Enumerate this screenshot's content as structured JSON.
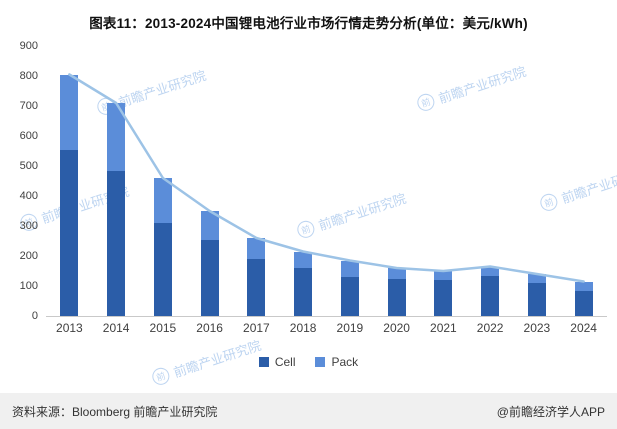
{
  "title": "图表11：2013-2024中国锂电池行业市场行情走势分析(单位：美元/kWh)",
  "chart_data": {
    "type": "bar",
    "stacked": true,
    "title": "图表11：2013-2024中国锂电池行业市场行情走势分析(单位：美元/kWh)",
    "unit": "美元/kWh",
    "categories": [
      "2013",
      "2014",
      "2015",
      "2016",
      "2017",
      "2018",
      "2019",
      "2020",
      "2021",
      "2022",
      "2023",
      "2024"
    ],
    "series": [
      {
        "name": "Cell",
        "color": "#2b5da8",
        "values": [
          555,
          485,
          310,
          255,
          190,
          160,
          130,
          125,
          120,
          135,
          110,
          85
        ]
      },
      {
        "name": "Pack",
        "color": "#5b8dd9",
        "values": [
          250,
          225,
          150,
          95,
          70,
          55,
          55,
          35,
          30,
          30,
          30,
          30
        ]
      }
    ],
    "totals": [
      805,
      710,
      460,
      350,
      260,
      215,
      185,
      160,
      150,
      165,
      140,
      115
    ],
    "line_color": "#9dc3e6",
    "ylim": [
      0,
      900
    ],
    "ytick_interval": 100,
    "grid": false,
    "legend_position": "bottom",
    "legend": [
      "Cell",
      "Pack"
    ]
  },
  "footer": {
    "source": "资料来源：Bloomberg 前瞻产业研究院",
    "brand": "@前瞻经济学人APP"
  },
  "watermark": {
    "text": "前瞻产业研究院",
    "logo_char": "前"
  }
}
